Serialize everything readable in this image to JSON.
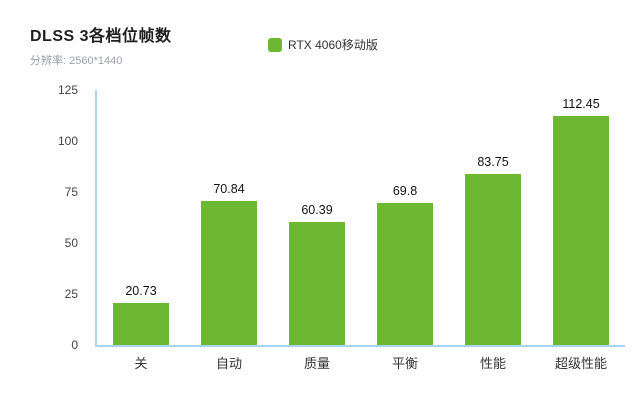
{
  "chart": {
    "title": "DLSS 3各档位帧数",
    "subtitle": "分辨率: 2560*1440",
    "legend": {
      "label": "RTX 4060移动版"
    }
  },
  "chart_data": {
    "type": "bar",
    "title": "DLSS 3各档位帧数",
    "subtitle": "分辨率: 2560*1440",
    "legend": [
      "RTX 4060移动版"
    ],
    "legend_position": "top",
    "categories": [
      "关",
      "自动",
      "质量",
      "平衡",
      "性能",
      "超级性能"
    ],
    "series": [
      {
        "name": "RTX 4060移动版",
        "values": [
          20.73,
          70.84,
          60.39,
          69.8,
          83.75,
          112.45
        ]
      }
    ],
    "xlabel": "",
    "ylabel": "",
    "ylim": [
      0,
      125
    ],
    "yticks": [
      0,
      25,
      50,
      75,
      100,
      125
    ],
    "grid": false,
    "bar_color": "#6cb832",
    "axis_color": "#a9d6ef"
  }
}
